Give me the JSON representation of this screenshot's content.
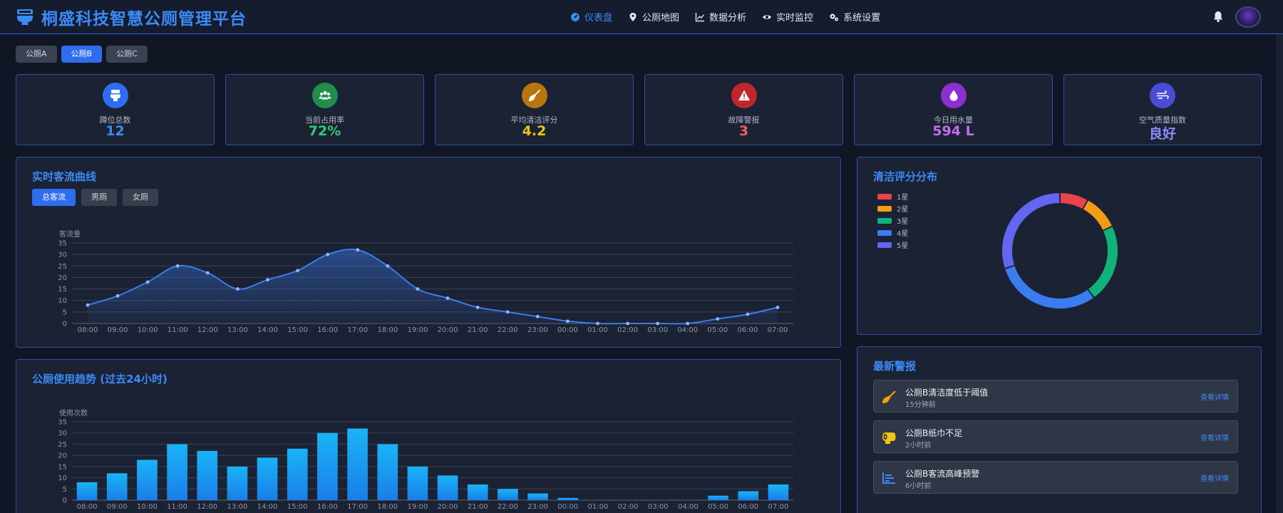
{
  "app": {
    "title": "桐盛科技智慧公厕管理平台"
  },
  "nav": [
    {
      "label": "仪表盘",
      "icon": "gauge-icon",
      "active": true
    },
    {
      "label": "公厕地图",
      "icon": "map-pin-icon"
    },
    {
      "label": "数据分析",
      "icon": "line-chart-icon"
    },
    {
      "label": "实时监控",
      "icon": "eye-icon"
    },
    {
      "label": "系统设置",
      "icon": "gears-icon"
    }
  ],
  "toilet_tabs": [
    {
      "label": "公厕A"
    },
    {
      "label": "公厕B",
      "active": true
    },
    {
      "label": "公厕C"
    }
  ],
  "stats": [
    {
      "label": "蹲位总数",
      "value": "12",
      "icon": "toilet-icon",
      "color": "#3b8bf6",
      "icon_bg": "#2f6df0"
    },
    {
      "label": "当前占用率",
      "value": "72%",
      "icon": "users-icon",
      "color": "#2ecc71",
      "icon_bg": "#1f8e4a"
    },
    {
      "label": "平均清洁评分",
      "value": "4.2",
      "icon": "broom-icon",
      "color": "#f1c40f",
      "icon_bg": "#b7770e"
    },
    {
      "label": "故障警报",
      "value": "3",
      "icon": "warning-icon",
      "color": "#f25c5c",
      "icon_bg": "#c0262d"
    },
    {
      "label": "今日用水量",
      "value": "594 L",
      "icon": "water-drop-icon",
      "color": "#c56cf0",
      "icon_bg": "#8e2fcf"
    },
    {
      "label": "空气质量指数",
      "value": "良好",
      "icon": "wind-icon",
      "color": "#8c8cff",
      "icon_bg": "#4b4bd8"
    }
  ],
  "flow_panel": {
    "title": "实时客流曲线",
    "chips": [
      {
        "label": "总客流",
        "active": true
      },
      {
        "label": "男厕"
      },
      {
        "label": "女厕"
      }
    ]
  },
  "usage_panel": {
    "title": "公厕使用趋势 (过去24小时)"
  },
  "clean_panel": {
    "title": "清洁评分分布"
  },
  "alerts_panel": {
    "title": "最新警报",
    "items": [
      {
        "title": "公厕B清洁度低于阈值",
        "time": "15分钟前",
        "link": "查看详情",
        "icon": "broom-icon",
        "color": "#f1a20f"
      },
      {
        "title": "公厕B纸巾不足",
        "time": "2小时前",
        "link": "查看详情",
        "icon": "toilet-paper-icon",
        "color": "#f1c40f"
      },
      {
        "title": "公厕B客流高峰预警",
        "time": "6小时前",
        "link": "查看详情",
        "icon": "chart-area-icon",
        "color": "#3b8bf6"
      }
    ]
  },
  "chart_data": [
    {
      "type": "area",
      "ylabel": "客流量",
      "xlabel": "",
      "ylim": [
        0,
        35
      ],
      "yticks": [
        0,
        5,
        10,
        15,
        20,
        25,
        30,
        35
      ],
      "categories": [
        "08:00",
        "09:00",
        "10:00",
        "11:00",
        "12:00",
        "13:00",
        "14:00",
        "15:00",
        "16:00",
        "17:00",
        "18:00",
        "19:00",
        "20:00",
        "21:00",
        "22:00",
        "23:00",
        "00:00",
        "01:00",
        "02:00",
        "03:00",
        "04:00",
        "05:00",
        "06:00",
        "07:00"
      ],
      "values": [
        8,
        12,
        18,
        25,
        22,
        15,
        19,
        23,
        30,
        32,
        25,
        15,
        11,
        7,
        5,
        3,
        1,
        0,
        0,
        0,
        0,
        2,
        4,
        7
      ],
      "grid": true,
      "color": "#3b7cf0"
    },
    {
      "type": "bar",
      "ylabel": "使用次数",
      "xlabel": "",
      "ylim": [
        0,
        35
      ],
      "yticks": [
        0,
        5,
        10,
        15,
        20,
        25,
        30,
        35
      ],
      "categories": [
        "08:00",
        "09:00",
        "10:00",
        "11:00",
        "12:00",
        "13:00",
        "14:00",
        "15:00",
        "16:00",
        "17:00",
        "18:00",
        "19:00",
        "20:00",
        "21:00",
        "22:00",
        "23:00",
        "00:00",
        "01:00",
        "02:00",
        "03:00",
        "04:00",
        "05:00",
        "06:00",
        "07:00"
      ],
      "values": [
        8,
        12,
        18,
        25,
        22,
        15,
        19,
        23,
        30,
        32,
        25,
        15,
        11,
        7,
        5,
        3,
        1,
        0,
        0,
        0,
        0,
        2,
        4,
        7
      ],
      "grid": true,
      "color": "#19a6f5"
    },
    {
      "type": "pie",
      "donut": true,
      "categories": [
        "1星",
        "2星",
        "3星",
        "4星",
        "5星"
      ],
      "values": [
        8,
        10,
        22,
        30,
        30
      ],
      "colors": [
        "#e9434b",
        "#f39c12",
        "#10b27a",
        "#3b7cf0",
        "#6366f1"
      ],
      "legend_position": "top-left"
    }
  ]
}
